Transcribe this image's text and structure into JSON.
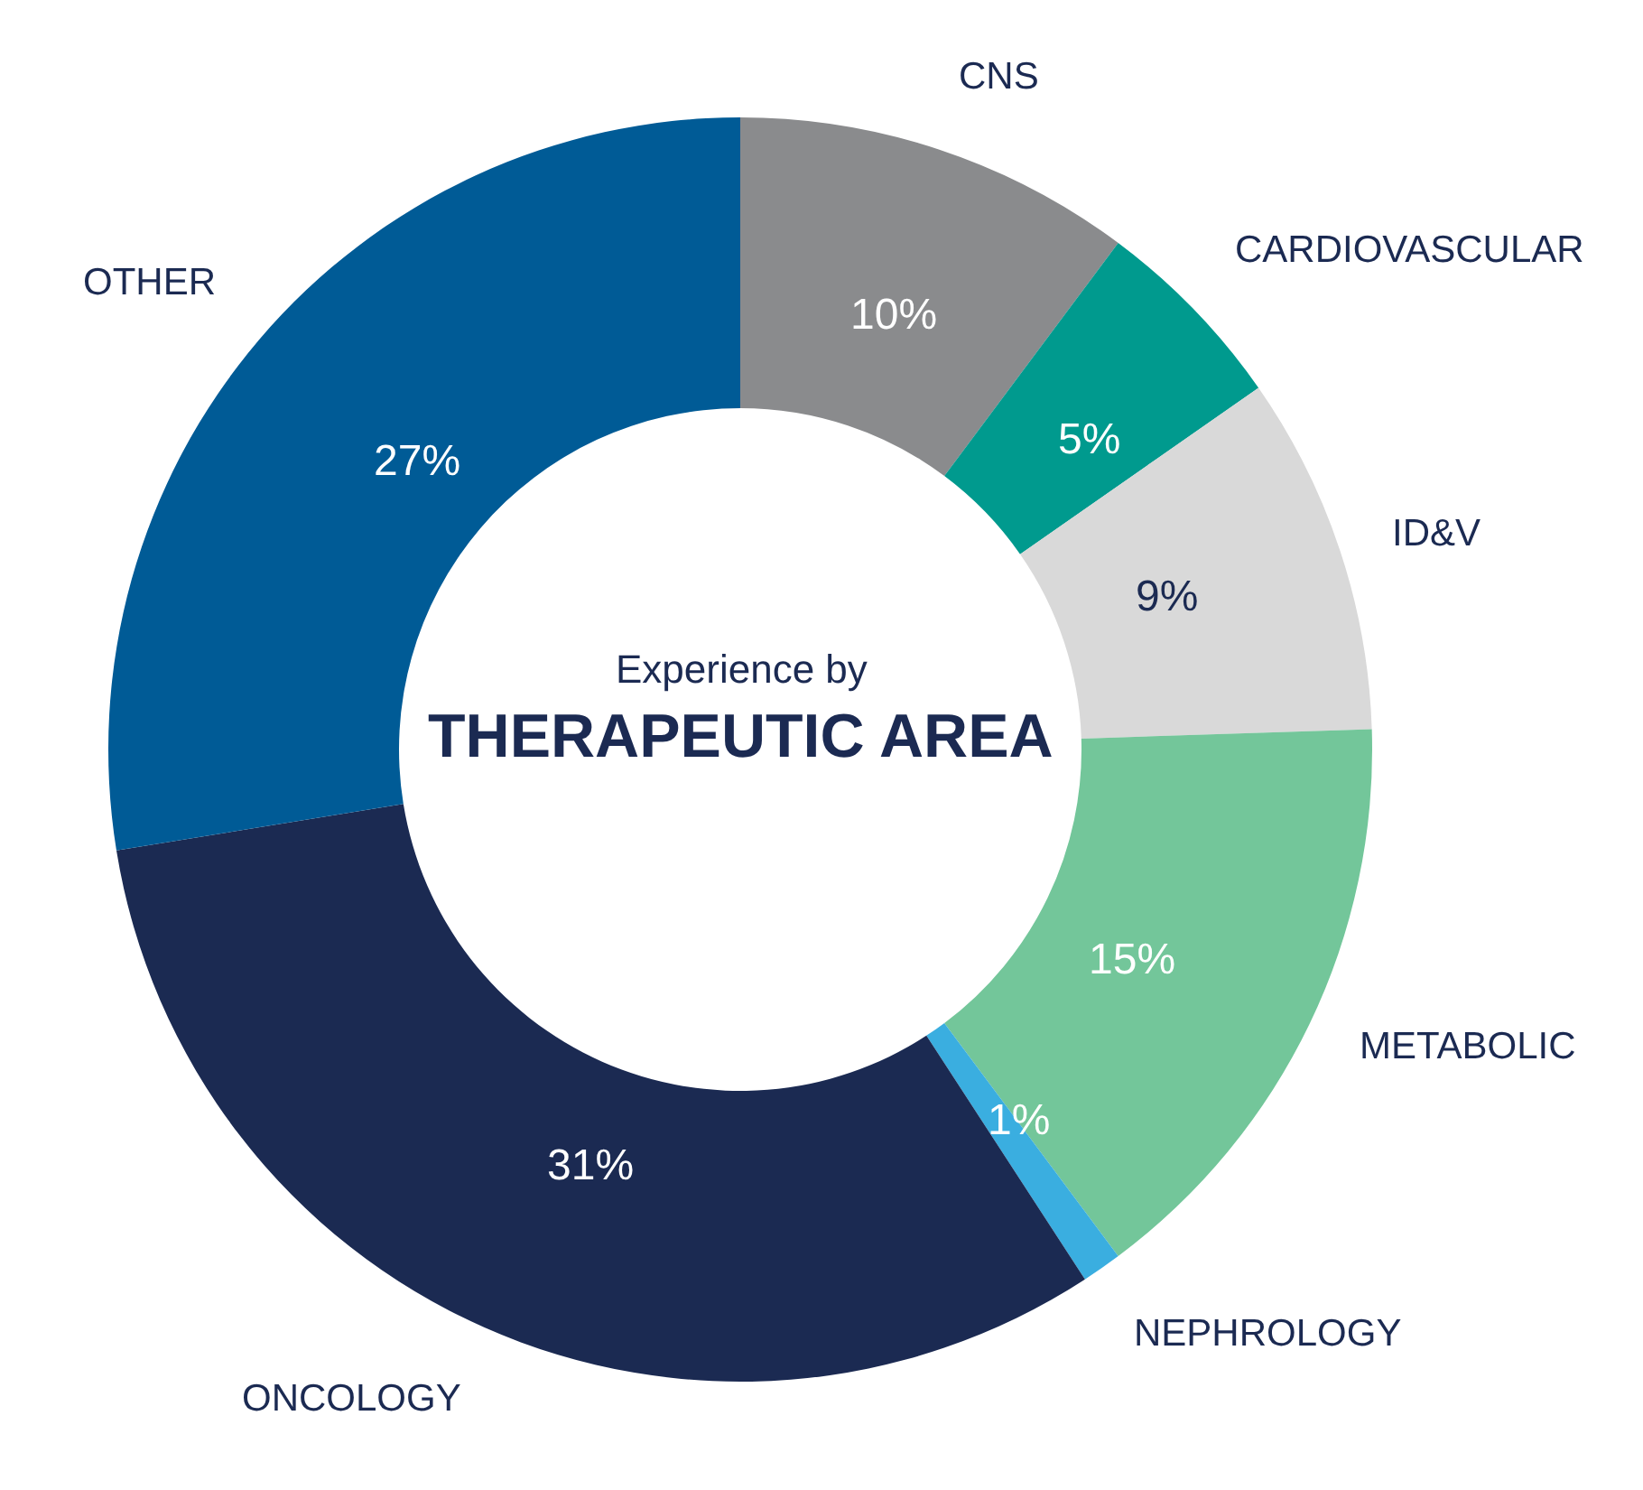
{
  "chart_data": {
    "type": "donut",
    "title": "THERAPEUTIC AREA",
    "subtitle": "Experience by",
    "categories": [
      "CNS",
      "CARDIOVASCULAR",
      "ID&V",
      "METABOLIC",
      "NEPHROLOGY",
      "ONCOLOGY",
      "OTHER"
    ],
    "values": [
      10,
      5,
      9,
      15,
      1,
      31,
      27
    ],
    "colors": [
      "#8a8b8d",
      "#009a8e",
      "#d9d9d9",
      "#73c69a",
      "#3aaee0",
      "#1b2a52",
      "#005b96"
    ],
    "value_labels": [
      "10%",
      "5%",
      "9%",
      "15%",
      "1%",
      "31%",
      "27%"
    ],
    "legend": false
  }
}
